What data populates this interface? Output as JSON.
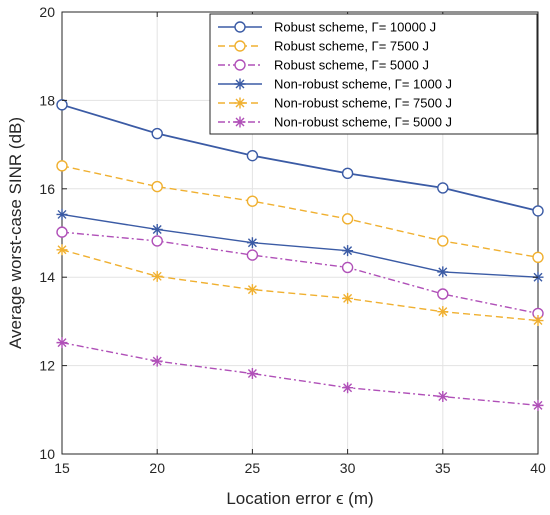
{
  "chart_data": {
    "type": "line",
    "title": "",
    "xlabel": "Location error  ϵ (m)",
    "ylabel": "Average worst-case SINR (dB)",
    "x": [
      15,
      20,
      25,
      30,
      35,
      40
    ],
    "xlim": [
      15,
      40
    ],
    "ylim": [
      10,
      20
    ],
    "xticks": [
      "15",
      "20",
      "25",
      "30",
      "35",
      "40"
    ],
    "yticks": [
      "10",
      "12",
      "14",
      "16",
      "18",
      "20"
    ],
    "grid": true,
    "legend_position": "top-right",
    "series": [
      {
        "name": "Robust scheme, Γ= 10000 J",
        "values": [
          17.9,
          17.25,
          16.75,
          16.35,
          16.02,
          15.5
        ],
        "color": "#3b5ba5",
        "dash": "solid",
        "marker": "circle"
      },
      {
        "name": "Robust scheme, Γ= 7500 J",
        "values": [
          16.52,
          16.05,
          15.72,
          15.32,
          14.82,
          14.45
        ],
        "color": "#f0b030",
        "dash": "dashed",
        "marker": "circle"
      },
      {
        "name": "Robust scheme, Γ= 5000 J",
        "values": [
          15.02,
          14.82,
          14.5,
          14.22,
          13.62,
          13.18
        ],
        "color": "#b050b8",
        "dash": "dashdot",
        "marker": "circle"
      },
      {
        "name": "Non-robust scheme, Γ= 1000 J",
        "values": [
          15.42,
          15.08,
          14.78,
          14.6,
          14.12,
          14.0
        ],
        "color": "#3b5ba5",
        "dash": "solid",
        "marker": "star"
      },
      {
        "name": "Non-robust scheme, Γ= 7500 J",
        "values": [
          14.62,
          14.02,
          13.72,
          13.52,
          13.22,
          13.02
        ],
        "color": "#f0b030",
        "dash": "dashed",
        "marker": "star"
      },
      {
        "name": "Non-robust scheme, Γ= 5000 J",
        "values": [
          12.52,
          12.1,
          11.82,
          11.5,
          11.3,
          11.1
        ],
        "color": "#b050b8",
        "dash": "dashdot",
        "marker": "star"
      }
    ]
  }
}
